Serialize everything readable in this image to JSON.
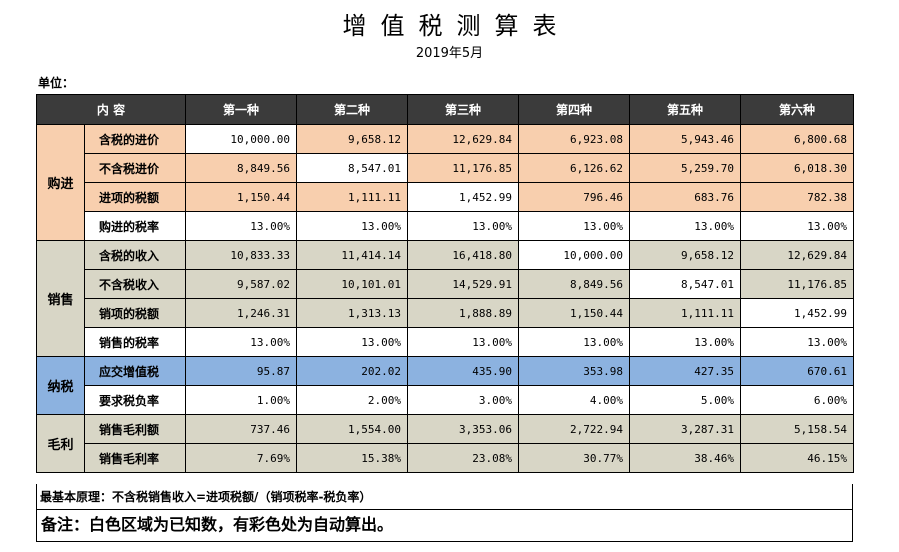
{
  "title": "增值税测算表",
  "date": "2019年5月",
  "unit_label": "单位：",
  "header": {
    "content": "内 容",
    "cols": [
      "第一种",
      "第二种",
      "第三种",
      "第四种",
      "第五种",
      "第六种"
    ]
  },
  "groups": [
    {
      "name": "购进",
      "rows": [
        {
          "label": "含税的进价",
          "values": [
            "10,000.00",
            "9,658.12",
            "12,629.84",
            "6,923.08",
            "5,943.46",
            "6,800.68"
          ],
          "white": [
            0
          ]
        },
        {
          "label": "不含税进价",
          "values": [
            "8,849.56",
            "8,547.01",
            "11,176.85",
            "6,126.62",
            "5,259.70",
            "6,018.30"
          ],
          "white": [
            1
          ]
        },
        {
          "label": "进项的税额",
          "values": [
            "1,150.44",
            "1,111.11",
            "1,452.99",
            "796.46",
            "683.76",
            "782.38"
          ],
          "white": [
            2
          ]
        },
        {
          "label": "购进的税率",
          "values": [
            "13.00%",
            "13.00%",
            "13.00%",
            "13.00%",
            "13.00%",
            "13.00%"
          ],
          "white": [
            0,
            1,
            2,
            3,
            4,
            5
          ],
          "label_white": true
        }
      ]
    },
    {
      "name": "销售",
      "rows": [
        {
          "label": "含税的收入",
          "values": [
            "10,833.33",
            "11,414.14",
            "16,418.80",
            "10,000.00",
            "9,658.12",
            "12,629.84"
          ],
          "white": [
            3
          ]
        },
        {
          "label": "不含税收入",
          "values": [
            "9,587.02",
            "10,101.01",
            "14,529.91",
            "8,849.56",
            "8,547.01",
            "11,176.85"
          ],
          "white": [
            4
          ]
        },
        {
          "label": "销项的税额",
          "values": [
            "1,246.31",
            "1,313.13",
            "1,888.89",
            "1,150.44",
            "1,111.11",
            "1,452.99"
          ],
          "white": [
            5
          ]
        },
        {
          "label": "销售的税率",
          "values": [
            "13.00%",
            "13.00%",
            "13.00%",
            "13.00%",
            "13.00%",
            "13.00%"
          ],
          "white": [
            0,
            1,
            2,
            3,
            4,
            5
          ],
          "label_white": true
        }
      ]
    },
    {
      "name": "纳税",
      "rows": [
        {
          "label": "应交增值税",
          "values": [
            "95.87",
            "202.02",
            "435.90",
            "353.98",
            "427.35",
            "670.61"
          ],
          "white": []
        },
        {
          "label": "要求税负率",
          "values": [
            "1.00%",
            "2.00%",
            "3.00%",
            "4.00%",
            "5.00%",
            "6.00%"
          ],
          "white": [
            0,
            1,
            2,
            3,
            4,
            5
          ],
          "label_white": true
        }
      ]
    },
    {
      "name": "毛利",
      "rows": [
        {
          "label": "销售毛利额",
          "values": [
            "737.46",
            "1,554.00",
            "3,353.06",
            "2,722.94",
            "3,287.31",
            "5,158.54"
          ],
          "white": []
        },
        {
          "label": "销售毛利率",
          "values": [
            "7.69%",
            "15.38%",
            "23.08%",
            "30.77%",
            "38.46%",
            "46.15%"
          ],
          "white": []
        }
      ]
    }
  ],
  "colors": {
    "buy": "#f8cfae",
    "sell": "#d8d6c6",
    "tax": "#8cb2e0",
    "gross": "#d8d6c6",
    "header": "#3b3b3b"
  },
  "principle": "最基本原理：不含税销售收入=进项税额/（销项税率-税负率）",
  "remark": "备注：白色区域为已知数，有彩色处为自动算出。"
}
